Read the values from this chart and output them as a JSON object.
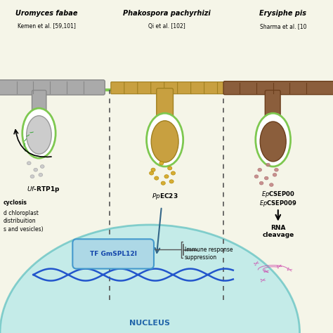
{
  "bg_color": "#f5f5e8",
  "cell_wall_color": "#c8b96e",
  "cell_wall_gray": "#a0a0a0",
  "cell_wall_brown": "#8B5E3C",
  "green_line_color": "#7ec850",
  "nucleus_color": "#b0e8e8",
  "nucleus_edge_color": "#5bbfbf",
  "dna_color": "#2255cc",
  "tf_box_color": "#add8e6",
  "tf_box_edge": "#4499cc",
  "arrow_color": "#333333",
  "title1": "Uromyces fabae",
  "ref1": "Kemen et al. [59,101]",
  "title2": "Phakospora pachyrhizi",
  "ref2": "Qi et al. [102]",
  "title3": "Erysiphe pis",
  "ref3": "Sharma et al. [10",
  "label1": "Uf-RTP1p",
  "label2": "PpEC23",
  "label3a": "EpCSEP00",
  "label3b": "EpCSEP009",
  "label_cyclosis": "cyclosis",
  "label_chloroplast": "d chloroplast",
  "label_distribution": "distribuition",
  "label_vesicles": "s and vesicles)",
  "label_tf": "TF GmSPL12I",
  "label_nucleus": "NUCLEUS",
  "label_immune": "Immune response\nsuppression",
  "label_rna": "RNA\ncleavage",
  "effector2_color": "#d4a520",
  "effector3_color": "#c08080",
  "pink_color": "#cc44aa"
}
